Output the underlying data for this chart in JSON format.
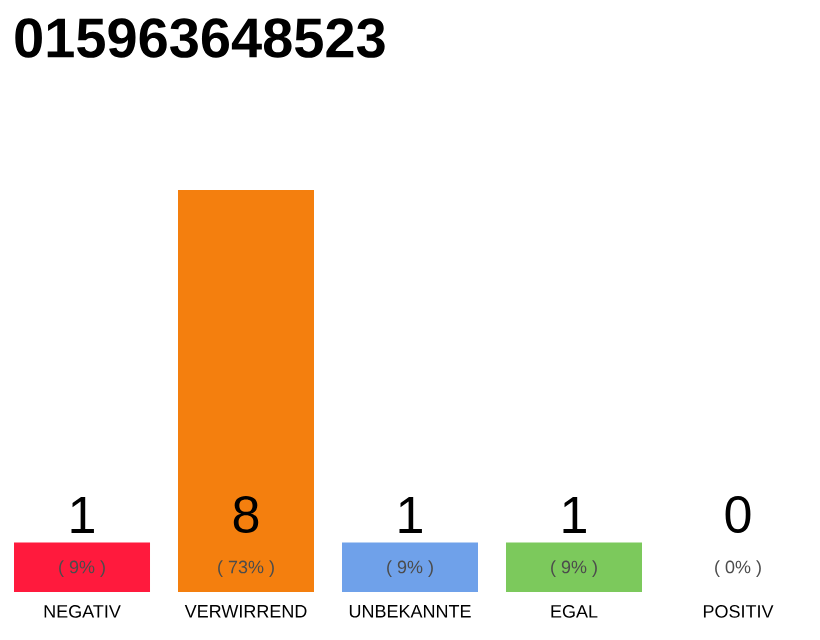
{
  "chart_data": {
    "type": "bar",
    "title": "015963648523",
    "categories": [
      "NEGATIV",
      "VERWIRREND",
      "UNBEKANNTE",
      "EGAL",
      "POSITIV"
    ],
    "values": [
      9,
      73,
      9,
      9,
      0
    ],
    "colors": [
      "#ff1a3d",
      "#f47f0e",
      "#6fa1ea",
      "#7cc95c",
      "#cccccc"
    ],
    "value_labels": [
      "( 9% )",
      "( 73% )",
      "( 9% )",
      "( 9% )",
      "( 0% )"
    ],
    "ylim": [
      0,
      73
    ],
    "tick_labels": "x",
    "annotations": [
      "1",
      "8",
      "1",
      "1",
      "0"
    ]
  }
}
